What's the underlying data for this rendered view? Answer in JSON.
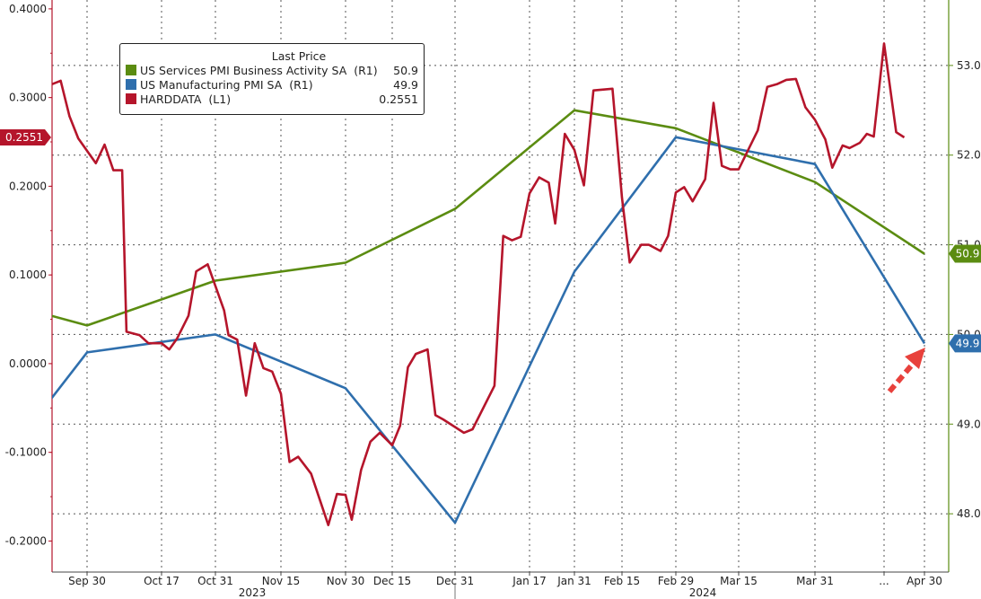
{
  "chart_data": {
    "type": "line",
    "title": "",
    "legend": {
      "header": "Last Price",
      "placement": "top-left",
      "entries": [
        {
          "label": "US Services PMI Business Activity SA  (R1)",
          "last": "50.9",
          "color": "#5b8c11"
        },
        {
          "label": "US Manufacturing PMI SA  (R1)",
          "last": "49.9",
          "color": "#2f6fad"
        },
        {
          "label": "HARDDATA  (L1)",
          "last": "0.2551",
          "color": "#b5152b"
        }
      ]
    },
    "x_ticks": [
      {
        "label": "Sep 30",
        "date": "2023-09-30"
      },
      {
        "label": "Oct 17",
        "date": "2023-10-17"
      },
      {
        "label": "Oct 31",
        "date": "2023-10-31"
      },
      {
        "label": "Nov 15",
        "date": "2023-11-15"
      },
      {
        "label": "Nov 30",
        "date": "2023-11-30"
      },
      {
        "label": "Dec 15",
        "date": "2023-12-15"
      },
      {
        "label": "Dec 31",
        "date": "2023-12-31"
      },
      {
        "label": "Jan 17",
        "date": "2024-01-17"
      },
      {
        "label": "Jan 31",
        "date": "2024-01-31"
      },
      {
        "label": "Feb 15",
        "date": "2024-02-15"
      },
      {
        "label": "Feb 29",
        "date": "2024-02-29"
      },
      {
        "label": "Mar 15",
        "date": "2024-03-15"
      },
      {
        "label": "Mar 31",
        "date": "2024-03-31"
      },
      {
        "label": "...",
        "date": "2024-04-20"
      },
      {
        "label": "Apr 30",
        "date": "2024-04-30"
      }
    ],
    "years": [
      "2023",
      "2024"
    ],
    "y_left": {
      "ticks": [
        "0.4000",
        "0.3000",
        "0.2000",
        "0.1000",
        "0.0000",
        "-0.1000",
        "-0.2000"
      ],
      "range": [
        -0.235,
        0.41
      ]
    },
    "y_right": {
      "ticks": [
        "53.0",
        "52.0",
        "51.0",
        "50.0",
        "49.0",
        "48.0"
      ],
      "range": [
        47.35,
        53.73
      ]
    },
    "grid": true,
    "series": [
      {
        "name": "US Services PMI Business Activity SA",
        "axis": "right",
        "color": "#5b8c11",
        "points": [
          [
            "2023-08-31",
            50.5
          ],
          [
            "2023-09-30",
            50.1
          ],
          [
            "2023-10-31",
            50.6
          ],
          [
            "2023-11-30",
            50.8
          ],
          [
            "2023-12-31",
            51.4
          ],
          [
            "2024-01-31",
            52.5
          ],
          [
            "2024-02-29",
            52.3
          ],
          [
            "2024-03-31",
            51.7
          ],
          [
            "2024-04-30",
            50.9
          ]
        ]
      },
      {
        "name": "US Manufacturing PMI SA",
        "axis": "right",
        "color": "#2f6fad",
        "points": [
          [
            "2023-08-31",
            47.9
          ],
          [
            "2023-09-30",
            49.8
          ],
          [
            "2023-10-31",
            50.0
          ],
          [
            "2023-11-30",
            49.4
          ],
          [
            "2023-12-31",
            47.9
          ],
          [
            "2024-01-31",
            50.7
          ],
          [
            "2024-02-29",
            52.2
          ],
          [
            "2024-03-31",
            51.9
          ],
          [
            "2024-04-30",
            49.9
          ]
        ]
      },
      {
        "name": "HARDDATA",
        "axis": "left",
        "color": "#b5152b",
        "points": [
          [
            "2023-09-22",
            0.315
          ],
          [
            "2023-09-24",
            0.319
          ],
          [
            "2023-09-26",
            0.279
          ],
          [
            "2023-09-28",
            0.254
          ],
          [
            "2023-10-02",
            0.226
          ],
          [
            "2023-10-04",
            0.247
          ],
          [
            "2023-10-06",
            0.218
          ],
          [
            "2023-10-08",
            0.218
          ],
          [
            "2023-10-09",
            0.036
          ],
          [
            "2023-10-12",
            0.032
          ],
          [
            "2023-10-14",
            0.023
          ],
          [
            "2023-10-17",
            0.023
          ],
          [
            "2023-10-19",
            0.016
          ],
          [
            "2023-10-21",
            0.028
          ],
          [
            "2023-10-24",
            0.054
          ],
          [
            "2023-10-26",
            0.104
          ],
          [
            "2023-10-29",
            0.112
          ],
          [
            "2023-11-02",
            0.06
          ],
          [
            "2023-11-03",
            0.032
          ],
          [
            "2023-11-05",
            0.027
          ],
          [
            "2023-11-07",
            -0.036
          ],
          [
            "2023-11-09",
            0.023
          ],
          [
            "2023-11-11",
            -0.005
          ],
          [
            "2023-11-13",
            -0.009
          ],
          [
            "2023-11-15",
            -0.034
          ],
          [
            "2023-11-17",
            -0.111
          ],
          [
            "2023-11-19",
            -0.105
          ],
          [
            "2023-11-22",
            -0.124
          ],
          [
            "2023-11-26",
            -0.182
          ],
          [
            "2023-11-28",
            -0.147
          ],
          [
            "2023-11-30",
            -0.148
          ],
          [
            "2023-12-02",
            -0.176
          ],
          [
            "2023-12-05",
            -0.12
          ],
          [
            "2023-12-08",
            -0.088
          ],
          [
            "2023-12-11",
            -0.078
          ],
          [
            "2023-12-15",
            -0.092
          ],
          [
            "2023-12-17",
            -0.07
          ],
          [
            "2023-12-19",
            -0.004
          ],
          [
            "2023-12-21",
            0.011
          ],
          [
            "2023-12-24",
            0.016
          ],
          [
            "2023-12-26",
            -0.058
          ],
          [
            "2023-12-28",
            -0.063
          ],
          [
            "2024-01-02",
            -0.078
          ],
          [
            "2024-01-04",
            -0.074
          ],
          [
            "2024-01-09",
            -0.025
          ],
          [
            "2024-01-11",
            0.144
          ],
          [
            "2024-01-13",
            0.139
          ],
          [
            "2024-01-15",
            0.143
          ],
          [
            "2024-01-17",
            0.192
          ],
          [
            "2024-01-20",
            0.21
          ],
          [
            "2024-01-23",
            0.204
          ],
          [
            "2024-01-25",
            0.158
          ],
          [
            "2024-01-28",
            0.259
          ],
          [
            "2024-01-31",
            0.241
          ],
          [
            "2024-02-03",
            0.201
          ],
          [
            "2024-02-06",
            0.308
          ],
          [
            "2024-02-12",
            0.31
          ],
          [
            "2024-02-15",
            0.187
          ],
          [
            "2024-02-17",
            0.114
          ],
          [
            "2024-02-20",
            0.134
          ],
          [
            "2024-02-22",
            0.134
          ],
          [
            "2024-02-25",
            0.127
          ],
          [
            "2024-02-27",
            0.144
          ],
          [
            "2024-02-29",
            0.193
          ],
          [
            "2024-03-02",
            0.199
          ],
          [
            "2024-03-04",
            0.183
          ],
          [
            "2024-03-07",
            0.208
          ],
          [
            "2024-03-09",
            0.294
          ],
          [
            "2024-03-11",
            0.223
          ],
          [
            "2024-03-13",
            0.219
          ],
          [
            "2024-03-15",
            0.219
          ],
          [
            "2024-03-17",
            0.241
          ],
          [
            "2024-03-19",
            0.263
          ],
          [
            "2024-03-21",
            0.312
          ],
          [
            "2024-03-23",
            0.315
          ],
          [
            "2024-03-25",
            0.32
          ],
          [
            "2024-03-27",
            0.321
          ],
          [
            "2024-03-29",
            0.289
          ],
          [
            "2024-03-31",
            0.275
          ],
          [
            "2024-04-03",
            0.253
          ],
          [
            "2024-04-05",
            0.221
          ],
          [
            "2024-04-08",
            0.246
          ],
          [
            "2024-04-10",
            0.243
          ],
          [
            "2024-04-13",
            0.249
          ],
          [
            "2024-04-15",
            0.259
          ],
          [
            "2024-04-17",
            0.256
          ],
          [
            "2024-04-20",
            0.361
          ],
          [
            "2024-04-23",
            0.261
          ],
          [
            "2024-04-25",
            0.2551
          ]
        ]
      }
    ],
    "last_value_tags": [
      {
        "series": "HARDDATA",
        "text": "0.2551",
        "color": "#b5152b",
        "axis": "left"
      },
      {
        "series": "US Services PMI Business Activity SA",
        "text": "50.9",
        "color": "#5b8c11",
        "axis": "right"
      },
      {
        "series": "US Manufacturing PMI SA",
        "text": "49.9",
        "color": "#2f6fad",
        "axis": "right"
      }
    ],
    "annotation": {
      "type": "dashed-arrow",
      "color": "#e8413c"
    }
  }
}
